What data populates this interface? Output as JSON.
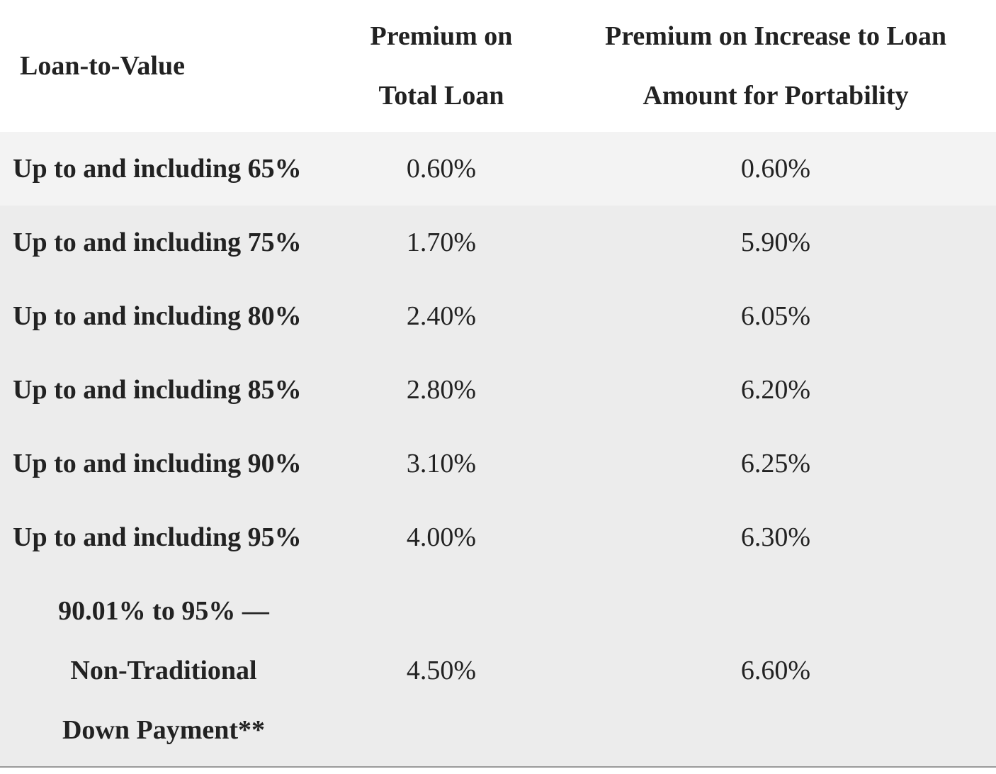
{
  "header": {
    "ltv_label": "Loan-to-Value",
    "total_line1": "Premium on",
    "total_line2": "Total Loan",
    "port_line1": "Premium on Increase to Loan",
    "port_line2": "Amount for Portability"
  },
  "rows": [
    {
      "ltv": "Up to and including 65%",
      "total": "0.60%",
      "port": "0.60%"
    },
    {
      "ltv": "Up to and including 75%",
      "total": "1.70%",
      "port": "5.90%"
    },
    {
      "ltv": "Up to and including 80%",
      "total": "2.40%",
      "port": "6.05%"
    },
    {
      "ltv": "Up to and including 85%",
      "total": "2.80%",
      "port": "6.20%"
    },
    {
      "ltv": "Up to and including 90%",
      "total": "3.10%",
      "port": "6.25%"
    },
    {
      "ltv": "Up to and including 95%",
      "total": "4.00%",
      "port": "6.30%"
    }
  ],
  "last_row": {
    "ltv_line1": "90.01% to 95% —",
    "ltv_line2": "Non-Traditional",
    "ltv_line3": "Down Payment**",
    "total": "4.50%",
    "port": "6.60%"
  }
}
